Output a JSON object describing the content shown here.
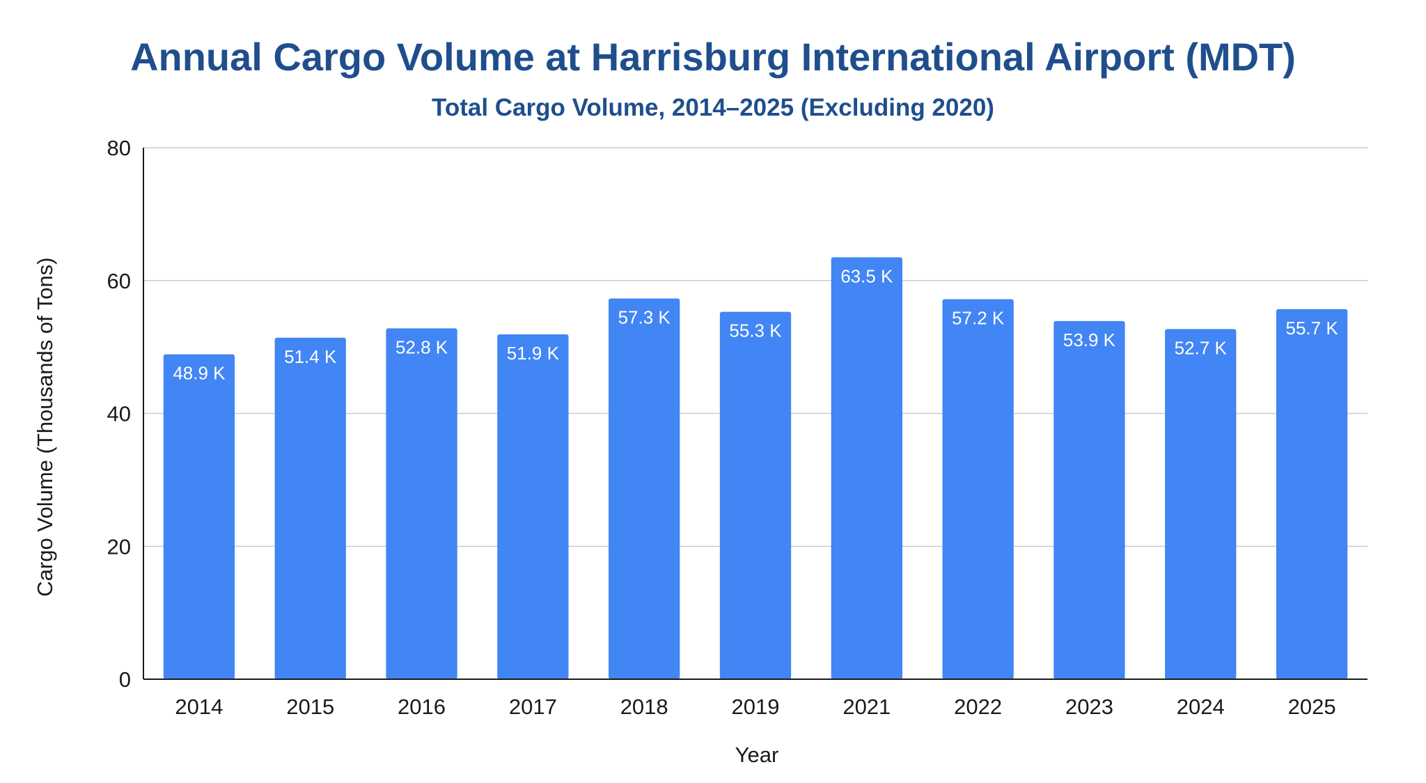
{
  "chart_data": {
    "type": "bar",
    "title": "Annual Cargo Volume at Harrisburg International Airport (MDT)",
    "subtitle": "Total Cargo Volume, 2014–2025 (Excluding 2020)",
    "xlabel": "Year",
    "ylabel": "Cargo Volume (Thousands of Tons)",
    "categories": [
      "2014",
      "2015",
      "2016",
      "2017",
      "2018",
      "2019",
      "2021",
      "2022",
      "2023",
      "2024",
      "2025"
    ],
    "values": [
      48.9,
      51.4,
      52.8,
      51.9,
      57.3,
      55.3,
      63.5,
      57.2,
      53.9,
      52.7,
      55.7
    ],
    "data_labels": [
      "48.9 K",
      "51.4 K",
      "52.8 K",
      "51.9 K",
      "57.3 K",
      "55.3 K",
      "63.5 K",
      "57.2 K",
      "53.9 K",
      "52.7 K",
      "55.7 K"
    ],
    "ylim": [
      0,
      80
    ],
    "yticks": [
      "0",
      "20",
      "40",
      "60",
      "80"
    ],
    "grid": true,
    "legend": "none",
    "colors": {
      "bar": "#4285f4",
      "title": "#1f4e8c",
      "gridline": "#cccccc",
      "axis": "#1a1a1a"
    }
  }
}
